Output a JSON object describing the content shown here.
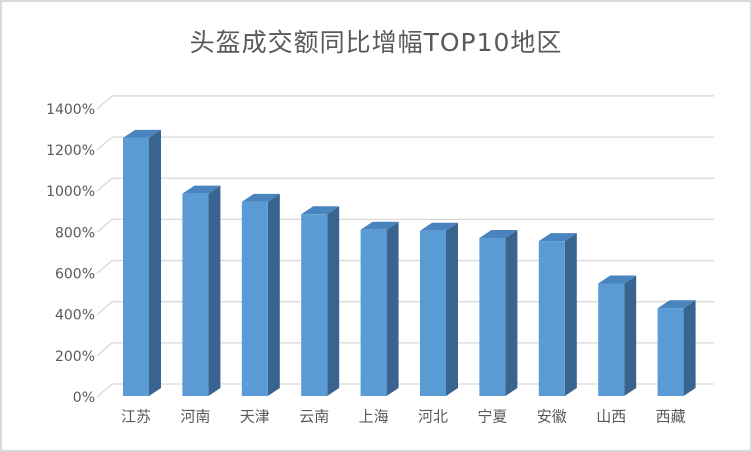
{
  "title": "头盔成交额同比增幅TOP10地区",
  "chart_data": {
    "type": "bar",
    "style": "3d-clustered-column",
    "title": "头盔成交额同比增幅TOP10地区",
    "categories": [
      "江苏",
      "河南",
      "天津",
      "云南",
      "上海",
      "河北",
      "宁夏",
      "安徽",
      "山西",
      "西藏"
    ],
    "values": [
      1250,
      980,
      940,
      880,
      805,
      800,
      765,
      750,
      545,
      425
    ],
    "value_unit": "%",
    "xlabel": "",
    "ylabel": "",
    "ylim": [
      0,
      1400
    ],
    "ytick_step": 200,
    "ytick_labels": [
      "0%",
      "200%",
      "400%",
      "600%",
      "800%",
      "1000%",
      "1200%",
      "1400%"
    ],
    "grid": true,
    "legend": false,
    "colors": {
      "bar_front": "#5B9BD5",
      "bar_side": "#38648F",
      "bar_top": "#4A84BE",
      "gridline": "#D9D9D9",
      "text": "#595959",
      "background": "#FFFFFF",
      "border": "#D9D9D9"
    }
  }
}
